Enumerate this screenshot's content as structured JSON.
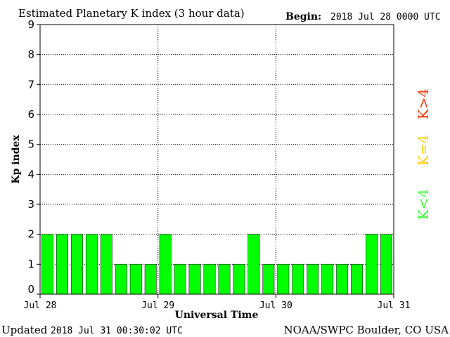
{
  "header": {
    "title": "Estimated Planetary K index (3 hour data)",
    "begin_label": "Begin:",
    "begin_value": "2018 Jul 28 0000 UTC"
  },
  "footer": {
    "updated_label": "Updated",
    "updated_value": "2018 Jul 31 00:30:02 UTC",
    "credit": "NOAA/SWPC Boulder, CO USA"
  },
  "legend": {
    "high": {
      "text": "K>4",
      "color": "#ff3300"
    },
    "equal": {
      "text": "K=4",
      "color": "#ffcc00"
    },
    "low": {
      "text": "K<4",
      "color": "#33ff33"
    }
  },
  "colors": {
    "bar_fill": "#00ff00",
    "bar_stroke": "#000000",
    "grid": "#000000"
  },
  "chart_data": {
    "type": "bar",
    "title": "Estimated Planetary K index (3 hour data)",
    "xlabel": "Universal Time",
    "ylabel": "Kp index",
    "ylim": [
      0,
      9
    ],
    "yticks": [
      0,
      1,
      2,
      3,
      4,
      5,
      6,
      7,
      8,
      9
    ],
    "xticks": [
      "Jul 28",
      "Jul 29",
      "Jul 30",
      "Jul 31"
    ],
    "grid": true,
    "interval_hours": 3,
    "values": [
      2,
      2,
      2,
      2,
      2,
      1,
      1,
      1,
      2,
      1,
      1,
      1,
      1,
      1,
      2,
      1,
      1,
      1,
      1,
      1,
      1,
      1,
      2,
      2
    ]
  }
}
